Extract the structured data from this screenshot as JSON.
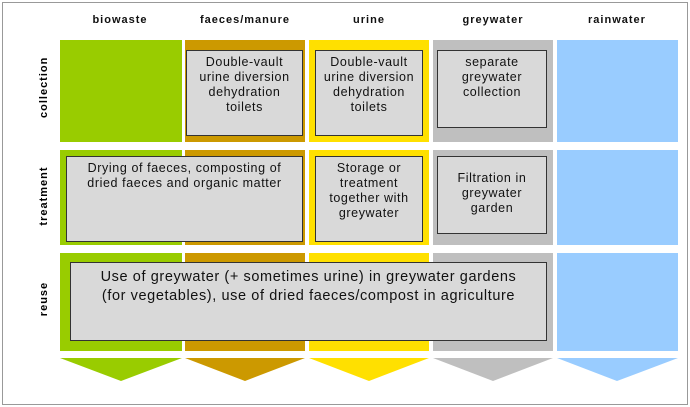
{
  "columns": [
    "biowaste",
    "faeces/manure",
    "urine",
    "greywater",
    "rainwater"
  ],
  "rows": [
    "collection",
    "treatment",
    "reuse"
  ],
  "boxes": {
    "collection_faeces": "Double-vault urine diversion dehydration toilets",
    "collection_urine": "Double-vault urine diversion dehydration toilets",
    "collection_greywater": "separate greywater collection",
    "treatment_biowaste_faeces": "Drying of faeces, composting of dried faeces and organic matter",
    "treatment_urine": "Storage or treatment together with greywater",
    "treatment_greywater": "Filtration in greywater garden",
    "reuse_all": "Use of greywater (+ sometimes urine) in greywater gardens (for vegetables), use of dried faeces/compost in agriculture"
  }
}
